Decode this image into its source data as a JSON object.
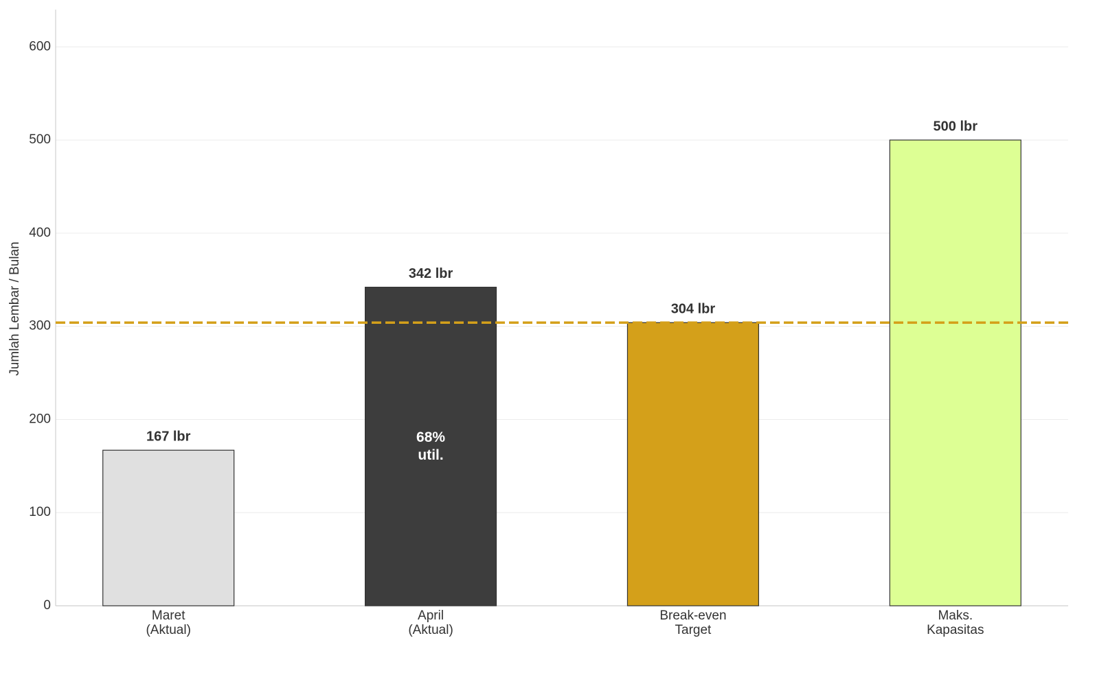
{
  "chart_data": {
    "type": "bar",
    "y_label": "Jumlah Lembar / Bulan",
    "categories": [
      [
        "Maret",
        "(Aktual)"
      ],
      [
        "April",
        "(Aktual)"
      ],
      [
        "Break-even",
        "Target"
      ],
      [
        "Maks.",
        "Kapasitas"
      ]
    ],
    "values": [
      167,
      342,
      304,
      500
    ],
    "value_labels": [
      "167 lbr",
      "342 lbr",
      "304 lbr",
      "500 lbr"
    ],
    "colors": [
      "#e0e0e0",
      "#3d3d3d",
      "#d4a01a",
      "#ddff94"
    ],
    "annotation": {
      "bar": 1,
      "lines": [
        "68%",
        "util."
      ]
    },
    "reference_line": {
      "value": 304,
      "color": "#d4a01a"
    },
    "ylim": [
      0,
      640
    ],
    "yticks": [
      0,
      100,
      200,
      300,
      400,
      500,
      600
    ],
    "grid": true
  }
}
